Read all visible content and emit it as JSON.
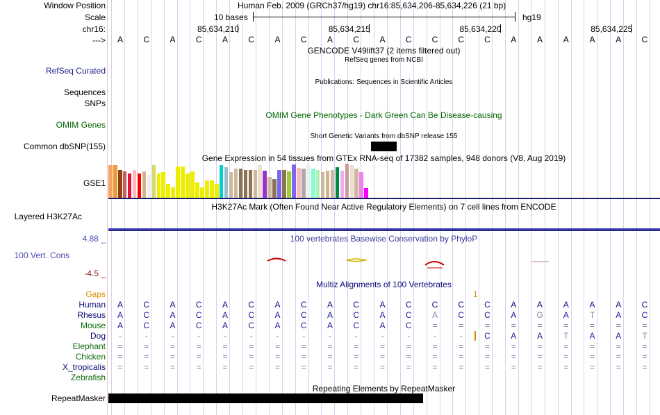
{
  "ruler": {
    "window_position_label": "Window Position",
    "window_position_value": "Human Feb. 2009 (GRCh37/hg19)   chr16:85,634,206-85,634,226 (21 bp)",
    "scale_label": "Scale",
    "scale_value": "10 bases",
    "scale_assembly": "hg19",
    "chrom_label": "chr16:",
    "ticks": [
      "85,634,210",
      "85,634,215",
      "85,634,220",
      "85,634,225"
    ],
    "strand_label": "--->",
    "bases": [
      "A",
      "C",
      "A",
      "C",
      "A",
      "C",
      "A",
      "C",
      "A",
      "C",
      "A",
      "C",
      "C",
      "C",
      "C",
      "A",
      "A",
      "A",
      "A",
      "A",
      "C"
    ]
  },
  "tracks": {
    "gencode_title": "GENCODE V49lift37 (2 items filtered out)",
    "refseq_subtitle": "RefSeq genes from NCBI",
    "refseq_label": "RefSeq Curated",
    "publications_title": "Publications: Sequences in Scientific Articles",
    "sequences_label": "Sequences",
    "snps_label": "SNPs",
    "omim_title": "OMIM Gene Phenotypes - Dark Green Can Be Disease-causing",
    "omim_label": "OMIM Genes",
    "dbsnp_title": "Short Genetic Variants from dbSNP release 155",
    "dbsnp_label": "Common dbSNP(155)",
    "gtex_title": "Gene Expression in 54 tissues from GTEx RNA-seq of 17382 samples, 948 donors (V8, Aug 2019)",
    "gtex_label": "GSE1",
    "h3k27_title": "H3K27Ac Mark (Often Found Near Active Regulatory Elements) on 7 cell lines from ENCODE",
    "h3k27_label": "Layered H3K27Ac",
    "cons_max": "4.88 _",
    "cons_label": "100 Vert. Cons",
    "cons_min": "-4.5 _",
    "phylop_title": "100 vertebrates Basewise Conservation by PhyloP",
    "multiz_title": "Multiz Alignments of 100 Vertebrates",
    "gaps_label": "Gaps",
    "gap_marker": "1",
    "repeat_title": "Repeating Elements by RepeatMasker",
    "repeat_label": "RepeatMasker"
  },
  "gtex_values": [
    0.95,
    0.95,
    0.82,
    0.78,
    0.72,
    0.82,
    0.72,
    0.78,
    0.68,
    0.95,
    0.72,
    0.75,
    0.4,
    0.3,
    0.92,
    0.92,
    0.72,
    0.78,
    0.45,
    0.3,
    0.5,
    0.5,
    0.4,
    0.95,
    0.9,
    0.75,
    0.85,
    0.85,
    0.82,
    0.82,
    0.82,
    0.95,
    0.8,
    0.62,
    0.55,
    0.82,
    0.82,
    0.78,
    0.98,
    0.88,
    0.85,
    0.95,
    0.85,
    0.82,
    0.75,
    0.8,
    0.82,
    0.9,
    0.8,
    1.0,
    0.95,
    0.85,
    0.75,
    0.28
  ],
  "gtex_colors": [
    "#f4a460",
    "#ee9a3a",
    "#8b4513",
    "#cd5c5c",
    "#dc143c",
    "#ffb6c1",
    "#ff0000",
    "#d2b48c",
    "#eeeeee",
    "#d8d86b",
    "#eeee00",
    "#eeee00",
    "#eeee00",
    "#eeee00",
    "#eeee00",
    "#eeee00",
    "#eeee00",
    "#eeee00",
    "#eeee00",
    "#eeee00",
    "#eeee00",
    "#eeee00",
    "#eeee00",
    "#00ced1",
    "#9ac0cd",
    "#cdb79e",
    "#cdb79e",
    "#8b7355",
    "#8b7355",
    "#8b7355",
    "#cdb79e",
    "#eeded0",
    "#9932cc",
    "#cdb79e",
    "#8b7355",
    "#7a67ee",
    "#8b7355",
    "#9acd32",
    "#7a67ee",
    "#ffb6c1",
    "#aaaaaa",
    "#eeeeee",
    "#7fffd4",
    "#b4eeb4",
    "#cdb79e",
    "#d2b48c",
    "#cdb79e",
    "#008b45",
    "#eeaeee",
    "#cd9b9b",
    "#eedcd1",
    "#cdb79e",
    "#ee82ee",
    "#ff00ff"
  ],
  "multiz": {
    "species": [
      "Human",
      "Rhesus",
      "Mouse",
      "Dog",
      "Elephant",
      "Chicken",
      "X_tropicalis",
      "Zebrafish"
    ],
    "rows": [
      [
        "A",
        "C",
        "A",
        "C",
        "A",
        "C",
        "A",
        "C",
        "A",
        "C",
        "A",
        "C",
        "C",
        "C",
        "C",
        "A",
        "A",
        "A",
        "A",
        "A",
        "C"
      ],
      [
        "A",
        "C",
        "A",
        "C",
        "A",
        "C",
        "A",
        "C",
        "A",
        "C",
        "A",
        "C",
        "A",
        "C",
        "C",
        "A",
        "G",
        "A",
        "T",
        "A",
        "C"
      ],
      [
        "A",
        "C",
        "A",
        "C",
        "A",
        "C",
        "A",
        "C",
        "A",
        "C",
        "A",
        "C",
        "=",
        "=",
        "=",
        "=",
        "=",
        "=",
        "=",
        "=",
        "="
      ],
      [
        "-",
        "-",
        "-",
        "-",
        "-",
        "-",
        "-",
        "-",
        "-",
        "-",
        "-",
        "-",
        "-",
        "-",
        "C",
        "A",
        "A",
        "T",
        "A",
        "A",
        "T"
      ],
      [
        "=",
        "=",
        "=",
        "=",
        "=",
        "=",
        "=",
        "=",
        "=",
        "=",
        "=",
        "=",
        "=",
        "=",
        "=",
        "=",
        "=",
        "=",
        "=",
        "=",
        "="
      ],
      [
        "=",
        "=",
        "=",
        "=",
        "=",
        "=",
        "=",
        "=",
        "=",
        "=",
        "=",
        "=",
        "=",
        "=",
        "=",
        "=",
        "=",
        "=",
        "=",
        "=",
        "="
      ],
      [
        "=",
        "=",
        "=",
        "=",
        "=",
        "=",
        "=",
        "=",
        "=",
        "=",
        "=",
        "=",
        "=",
        "=",
        "=",
        "=",
        "=",
        "=",
        "=",
        "=",
        "="
      ],
      [
        "",
        "",
        "",
        "",
        "",
        "",
        "",
        "",
        "",
        "",
        "",
        "",
        "",
        "",
        "",
        "",
        "",
        "",
        "",
        "",
        ""
      ]
    ]
  },
  "colors": {
    "track_label": "#000000",
    "blue_label": "#1a1a8c",
    "omim_green": "#006400",
    "cons_blue": "#4b4bb4",
    "cons_red": "#8b1a1a",
    "gaps_orange": "#d98c00",
    "species_green": "#0b6b0b",
    "species_blue": "#0a0a7a",
    "mismatch_gray": "#8888aa"
  }
}
